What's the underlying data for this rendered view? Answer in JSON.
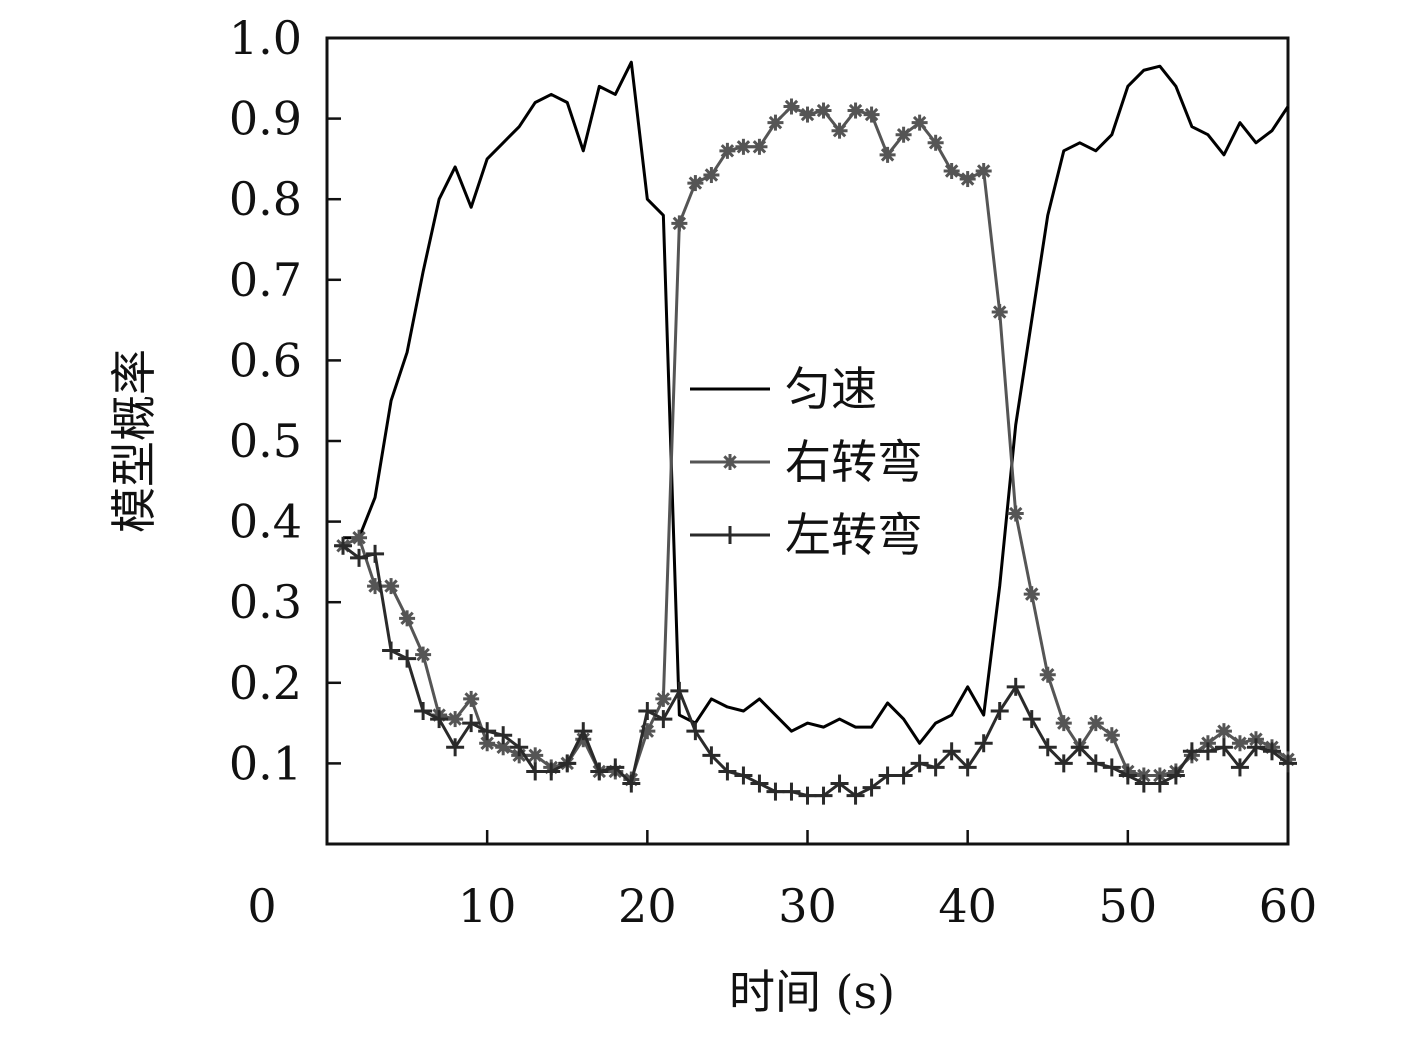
{
  "chart_data": {
    "type": "line",
    "xlabel": "时间 (s)",
    "ylabel": "模型概率",
    "xlim": [
      0,
      60
    ],
    "ylim": [
      0,
      1.0
    ],
    "x_ticks": [
      "0",
      "10",
      "20",
      "30",
      "40",
      "50",
      "60"
    ],
    "y_ticks": [
      "0.1",
      "0.2",
      "0.3",
      "0.4",
      "0.5",
      "0.6",
      "0.7",
      "0.8",
      "0.9",
      "1.0"
    ],
    "grid": false,
    "legend_position": "center",
    "x": [
      1,
      2,
      3,
      4,
      5,
      6,
      7,
      8,
      9,
      10,
      11,
      12,
      13,
      14,
      15,
      16,
      17,
      18,
      19,
      20,
      21,
      22,
      23,
      24,
      25,
      26,
      27,
      28,
      29,
      30,
      31,
      32,
      33,
      34,
      35,
      36,
      37,
      38,
      39,
      40,
      41,
      42,
      43,
      44,
      45,
      46,
      47,
      48,
      49,
      50,
      51,
      52,
      53,
      54,
      55,
      56,
      57,
      58,
      59,
      60
    ],
    "series": [
      {
        "name": "匀速",
        "marker": "none",
        "color": "#000000",
        "values": [
          0.38,
          0.38,
          0.43,
          0.55,
          0.61,
          0.71,
          0.8,
          0.84,
          0.79,
          0.85,
          0.87,
          0.89,
          0.92,
          0.93,
          0.92,
          0.86,
          0.94,
          0.93,
          0.97,
          0.8,
          0.78,
          0.16,
          0.15,
          0.18,
          0.17,
          0.165,
          0.18,
          0.16,
          0.14,
          0.15,
          0.145,
          0.155,
          0.145,
          0.145,
          0.175,
          0.155,
          0.125,
          0.15,
          0.16,
          0.195,
          0.16,
          0.32,
          0.52,
          0.65,
          0.78,
          0.86,
          0.87,
          0.86,
          0.88,
          0.94,
          0.96,
          0.965,
          0.94,
          0.89,
          0.88,
          0.855,
          0.895,
          0.87,
          0.885,
          0.915
        ]
      },
      {
        "name": "右转弯",
        "marker": "asterisk",
        "color": "#555555",
        "values": [
          0.37,
          0.38,
          0.32,
          0.32,
          0.28,
          0.235,
          0.16,
          0.155,
          0.18,
          0.125,
          0.12,
          0.11,
          0.11,
          0.095,
          0.1,
          0.13,
          0.09,
          0.09,
          0.08,
          0.14,
          0.18,
          0.77,
          0.82,
          0.83,
          0.86,
          0.865,
          0.865,
          0.895,
          0.915,
          0.905,
          0.91,
          0.885,
          0.91,
          0.905,
          0.855,
          0.88,
          0.895,
          0.87,
          0.835,
          0.825,
          0.835,
          0.66,
          0.41,
          0.31,
          0.21,
          0.15,
          0.12,
          0.15,
          0.135,
          0.09,
          0.085,
          0.085,
          0.09,
          0.11,
          0.125,
          0.14,
          0.125,
          0.13,
          0.12,
          0.105
        ]
      },
      {
        "name": "左转弯",
        "marker": "plus",
        "color": "#2a2a2a",
        "values": [
          0.37,
          0.355,
          0.36,
          0.24,
          0.23,
          0.165,
          0.155,
          0.12,
          0.15,
          0.14,
          0.135,
          0.12,
          0.09,
          0.09,
          0.1,
          0.14,
          0.09,
          0.095,
          0.075,
          0.165,
          0.155,
          0.19,
          0.14,
          0.11,
          0.09,
          0.085,
          0.075,
          0.065,
          0.065,
          0.06,
          0.06,
          0.075,
          0.06,
          0.07,
          0.085,
          0.085,
          0.1,
          0.095,
          0.115,
          0.095,
          0.125,
          0.165,
          0.195,
          0.155,
          0.12,
          0.1,
          0.12,
          0.1,
          0.095,
          0.085,
          0.075,
          0.075,
          0.085,
          0.115,
          0.115,
          0.12,
          0.095,
          0.12,
          0.115,
          0.1
        ]
      }
    ]
  }
}
